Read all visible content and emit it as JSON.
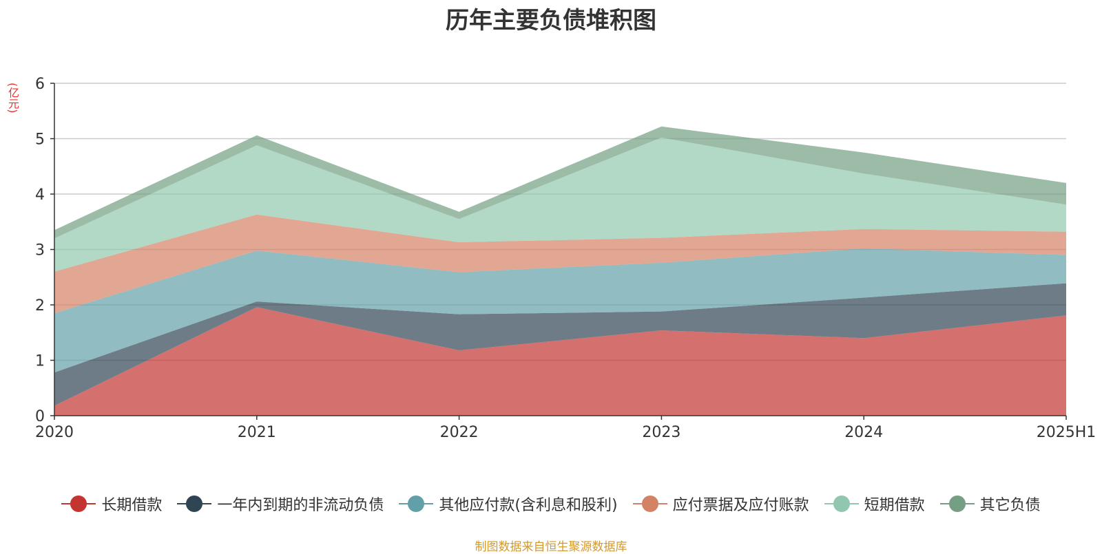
{
  "chart_data": {
    "type": "area",
    "stacked": true,
    "title": "历年主要负债堆积图",
    "unit_label": "(亿元)",
    "categories": [
      "2020",
      "2021",
      "2022",
      "2023",
      "2024",
      "2025H1"
    ],
    "ylim": [
      0,
      6
    ],
    "yticks": [
      0,
      1,
      2,
      3,
      4,
      5,
      6
    ],
    "grid": true,
    "legend_position": "bottom",
    "series": [
      {
        "name": "长期借款",
        "color": "#c23531",
        "values": [
          0.18,
          1.96,
          1.18,
          1.54,
          1.4,
          1.81
        ]
      },
      {
        "name": "一年内到期的非流动负债",
        "color": "#2f4554",
        "values": [
          0.6,
          0.1,
          0.65,
          0.34,
          0.73,
          0.58
        ]
      },
      {
        "name": "其他应付款(含利息和股利)",
        "color": "#61a0a8",
        "values": [
          1.07,
          0.92,
          0.76,
          0.88,
          0.89,
          0.51
        ]
      },
      {
        "name": "应付票据及应付账款",
        "color": "#d48265",
        "values": [
          0.75,
          0.65,
          0.54,
          0.45,
          0.35,
          0.42
        ]
      },
      {
        "name": "短期借款",
        "color": "#91c7ae",
        "values": [
          0.6,
          1.25,
          0.42,
          1.81,
          1.0,
          0.49
        ]
      },
      {
        "name": "其它负债",
        "color": "#749f83",
        "values": [
          0.15,
          0.18,
          0.13,
          0.2,
          0.38,
          0.39
        ]
      }
    ]
  },
  "footer": "制图数据来自恒生聚源数据库"
}
